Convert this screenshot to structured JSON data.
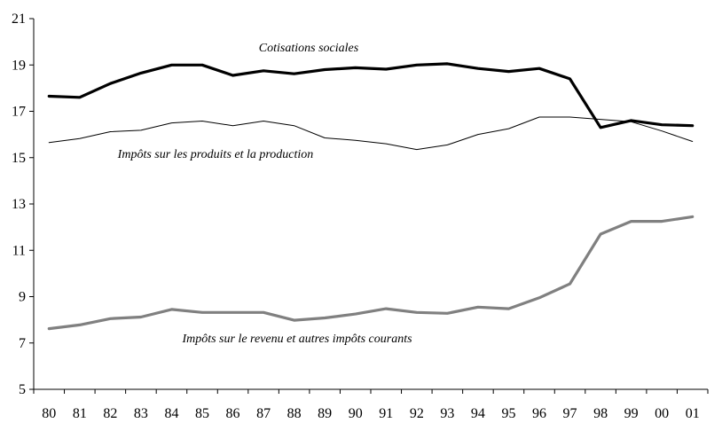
{
  "chart_data": {
    "type": "line",
    "title": "",
    "xlabel": "",
    "ylabel": "",
    "categories": [
      "80",
      "81",
      "82",
      "83",
      "84",
      "85",
      "86",
      "87",
      "88",
      "89",
      "90",
      "91",
      "92",
      "93",
      "94",
      "95",
      "96",
      "97",
      "98",
      "99",
      "00",
      "01"
    ],
    "ylim": [
      5,
      21
    ],
    "yticks": [
      5,
      7,
      9,
      11,
      13,
      15,
      17,
      19,
      21
    ],
    "grid": false,
    "legend": "none",
    "series": [
      {
        "name": "Cotisations sociales",
        "color": "#000000",
        "values": [
          17.65,
          17.6,
          18.2,
          18.65,
          19.0,
          19.0,
          18.55,
          18.75,
          18.62,
          18.8,
          18.88,
          18.82,
          19.0,
          19.05,
          18.85,
          18.72,
          18.85,
          18.4,
          16.3,
          16.6,
          16.42,
          16.38
        ]
      },
      {
        "name": "Impôts sur les produits et la production",
        "color": "#000000",
        "values": [
          15.65,
          15.82,
          16.12,
          16.18,
          16.5,
          16.58,
          16.38,
          16.58,
          16.38,
          15.85,
          15.75,
          15.6,
          15.35,
          15.55,
          16.0,
          16.25,
          16.75,
          16.75,
          16.65,
          16.55,
          16.15,
          15.7
        ]
      },
      {
        "name": "Impôts sur le revenu et autres impôts courants",
        "color": "#808080",
        "values": [
          7.62,
          7.78,
          8.05,
          8.12,
          8.45,
          8.32,
          8.32,
          8.32,
          7.98,
          8.08,
          8.25,
          8.48,
          8.32,
          8.28,
          8.55,
          8.48,
          8.95,
          9.55,
          11.7,
          12.25,
          12.25,
          12.45
        ]
      }
    ]
  }
}
